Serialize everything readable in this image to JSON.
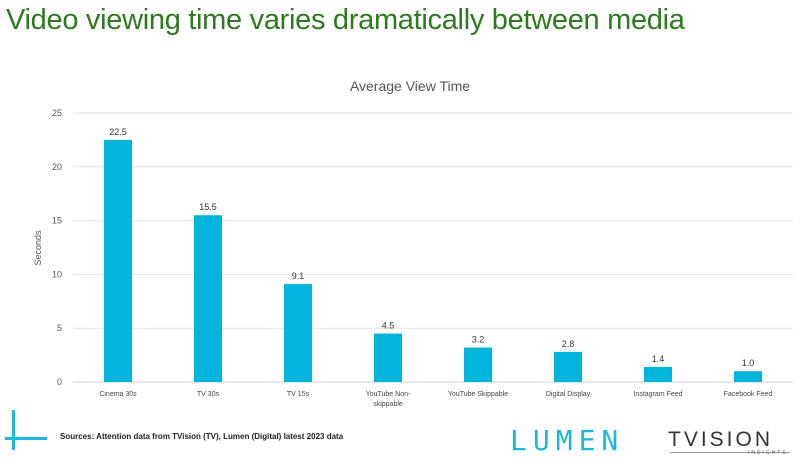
{
  "page_title": "Video viewing time varies dramatically between media",
  "chart_data": {
    "type": "bar",
    "title": "Average View Time",
    "xlabel": "",
    "ylabel": "Seconds",
    "ylim": [
      0,
      25
    ],
    "yticks": [
      0,
      5,
      10,
      15,
      20,
      25
    ],
    "grid": true,
    "categories": [
      "Cinema 30s",
      "TV 30s",
      "TV 15s",
      "YouTube Non-skippable",
      "YouTube Skippable",
      "Digital Display",
      "Instagram Feed",
      "Facebook Feed"
    ],
    "values": [
      22.5,
      15.5,
      9.1,
      4.5,
      3.2,
      2.8,
      1.4,
      1.0
    ],
    "data_labels": [
      "22.5",
      "15.5",
      "9.1",
      "4.5",
      "3.2",
      "2.8",
      "1.4",
      "1.0"
    ],
    "bar_color": "#00b5dc"
  },
  "footer": {
    "source": "Sources: Attention data from TVision (TV), Lumen (Digital) latest 2023 data",
    "logos": {
      "lumen": "LUMEN",
      "tvision": "TVISION",
      "tvision_sub": "INSIGHTS"
    }
  }
}
